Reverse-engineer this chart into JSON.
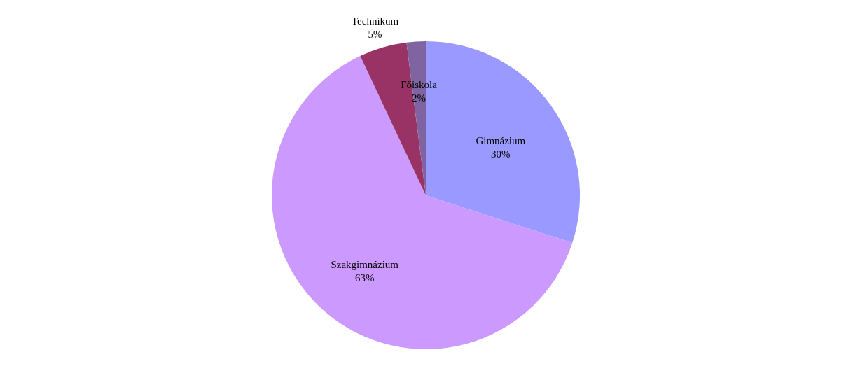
{
  "chart_data": {
    "type": "pie",
    "categories": [
      "Gimnázium",
      "Szakgimnázium",
      "Technikum",
      "Főiskola"
    ],
    "values": [
      30,
      63,
      5,
      2
    ],
    "value_labels": [
      "30%",
      "63%",
      "5%",
      "2%"
    ],
    "colors": [
      "#9999ff",
      "#cc99ff",
      "#993366",
      "#8064a2"
    ],
    "legend": false
  }
}
